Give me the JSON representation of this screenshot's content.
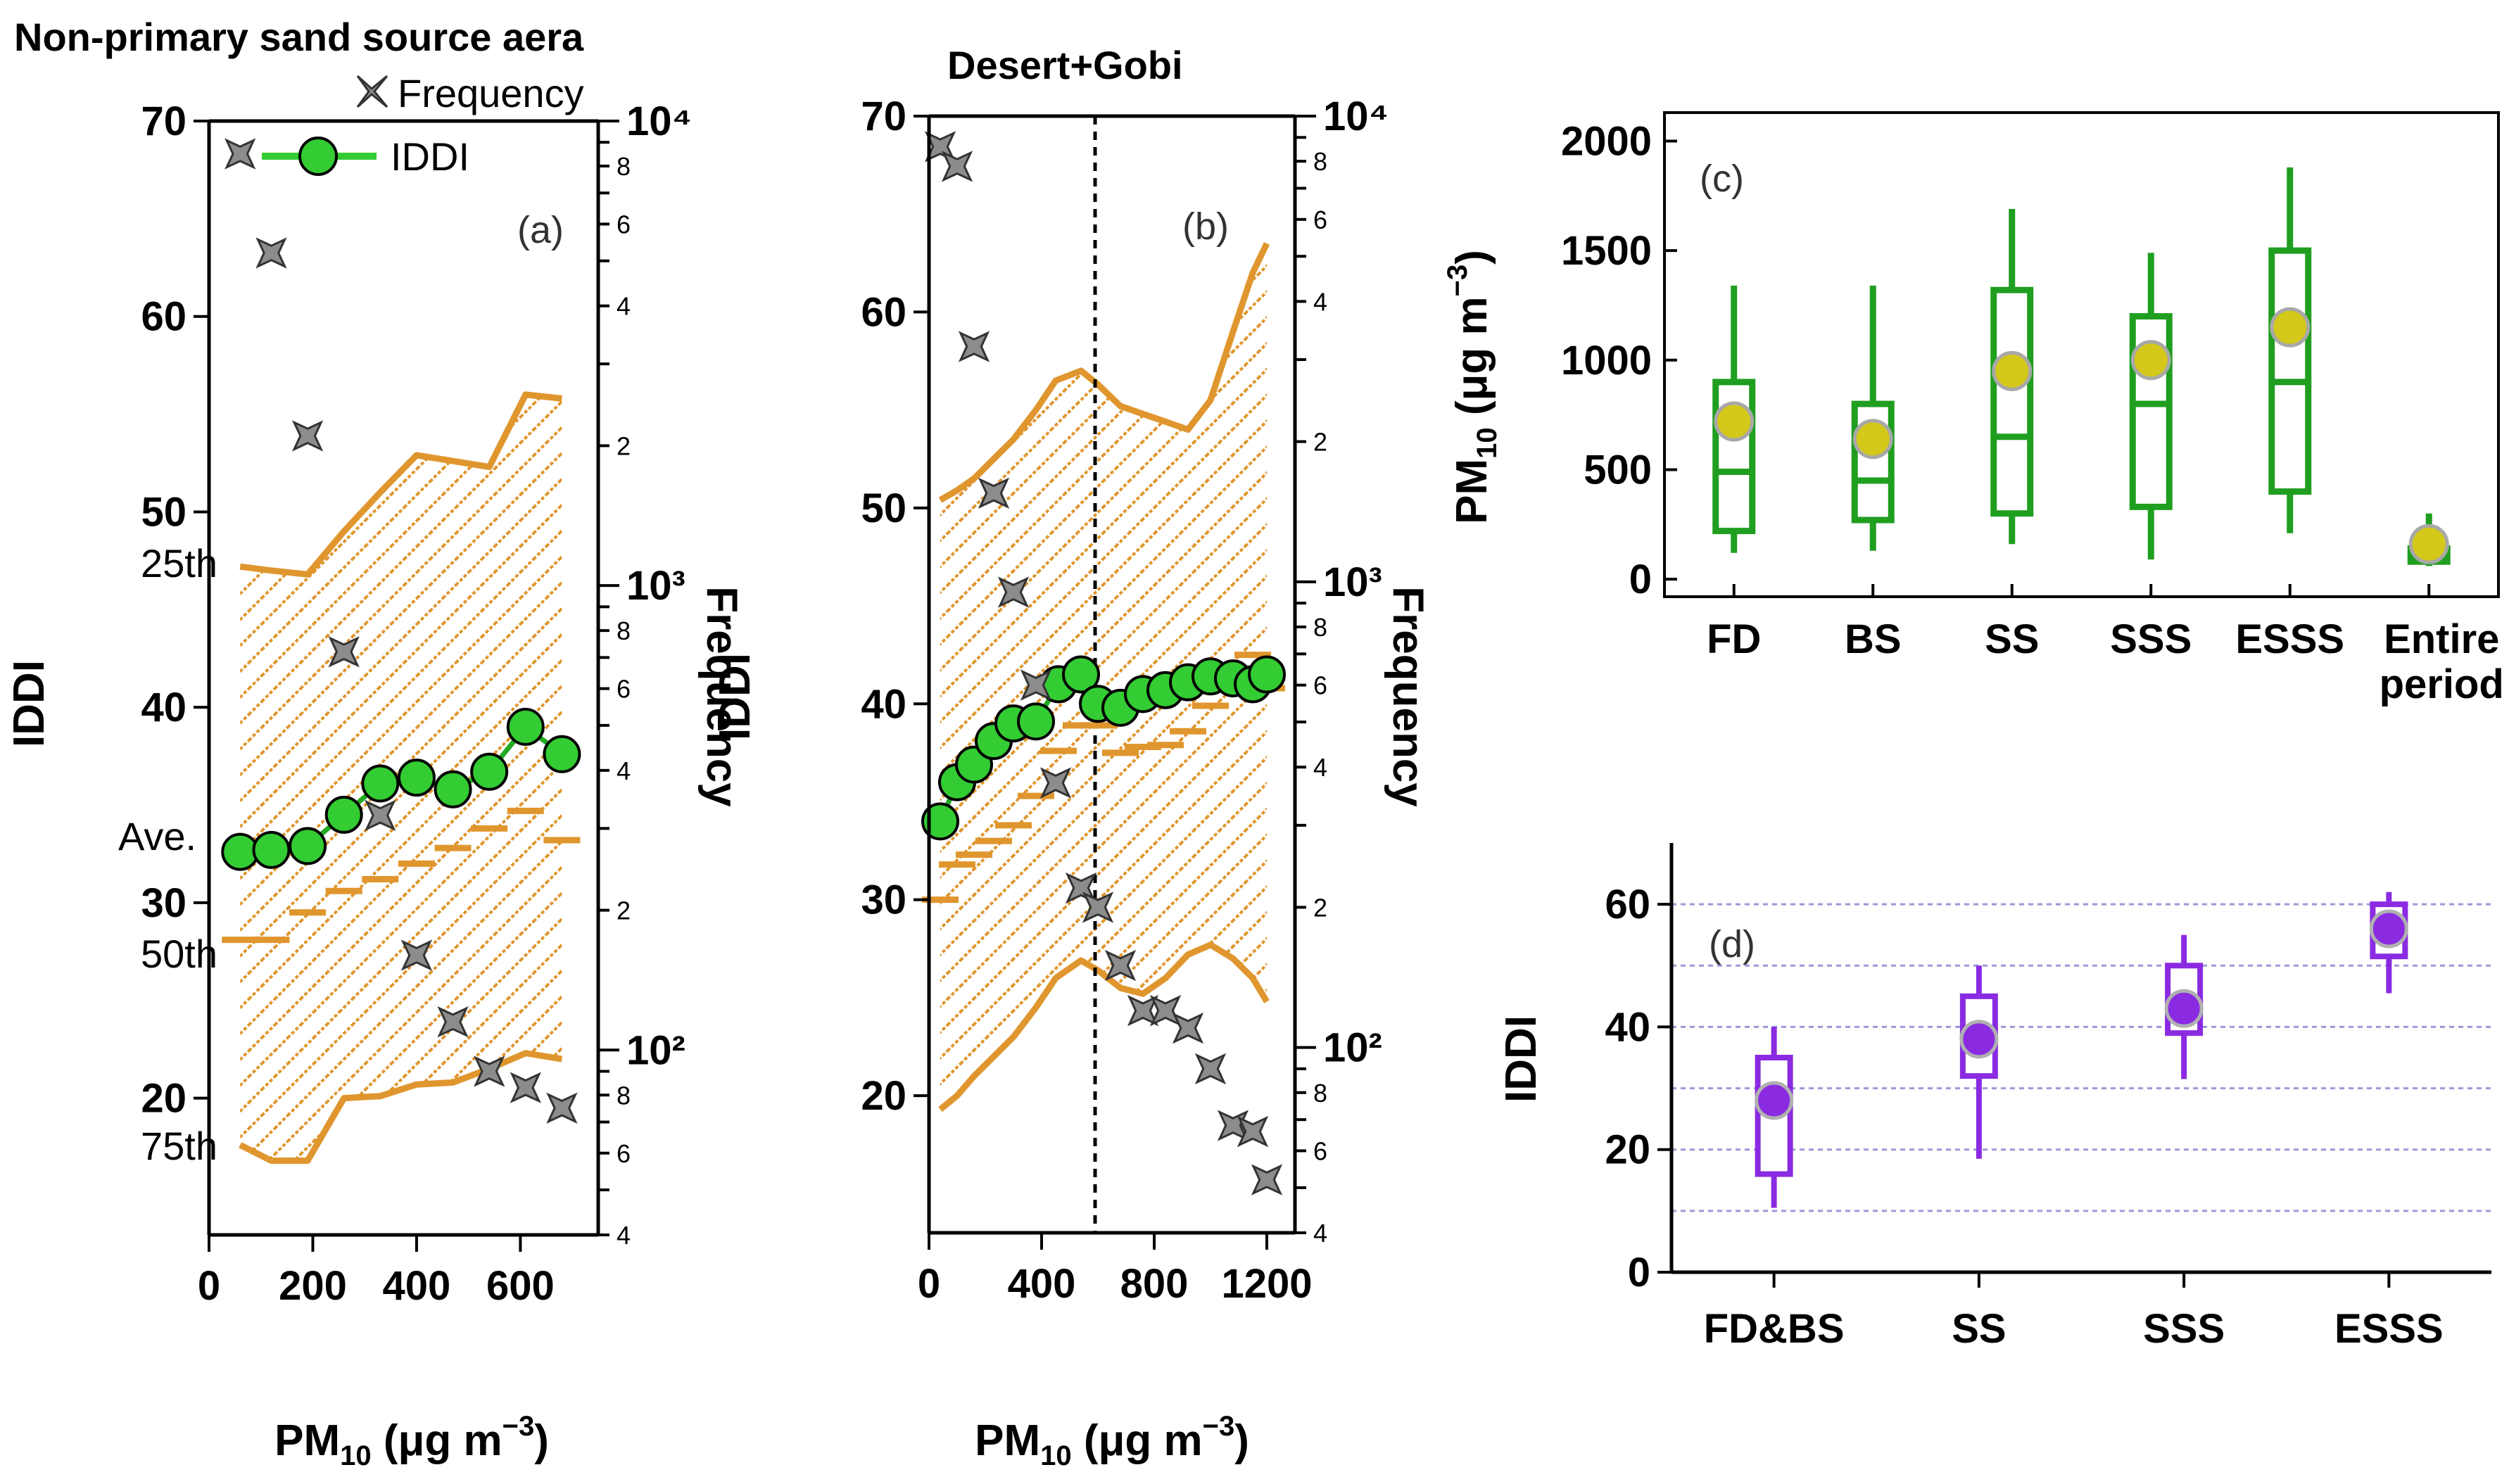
{
  "colors": {
    "orange": "#e0962e",
    "green_marker": "#33cc33",
    "green_line": "#22aa22",
    "gray_marker": "#8c8c8c",
    "box_green": "#1f9e1f",
    "yellow_marker": "#d4c81a",
    "purple": "#8a2be2",
    "grid_purple": "#9a9ad8"
  },
  "chart_data": [
    {
      "id": "a",
      "type": "line",
      "title": "Non-primary sand source aera",
      "panel_label": "(a)",
      "xlabel": "PM10 (μg m−3)",
      "ylabel": "IDDI",
      "y2label": "Frequency",
      "xlim": [
        0,
        750
      ],
      "ylim": [
        13,
        70
      ],
      "y2lim_log": [
        40,
        10000
      ],
      "x_ticks": [
        0,
        200,
        400,
        600
      ],
      "x_tick_labels": [
        "0",
        "200",
        "400",
        "600"
      ],
      "y_ticks": [
        20,
        30,
        40,
        50,
        60,
        70
      ],
      "y_tick_labels": [
        "20",
        "30",
        "40",
        "50",
        "60",
        "70"
      ],
      "y2_major": [
        100,
        1000,
        10000
      ],
      "y2_major_labels": [
        "10²",
        "10³",
        "10⁴"
      ],
      "y2_minor_labels": [
        "4",
        "6",
        "8",
        "2",
        "4",
        "6",
        "8",
        "2",
        "4",
        "6",
        "8"
      ],
      "legend": [
        "Frequency",
        "IDDI"
      ],
      "annotations": [
        "25th",
        "Ave.",
        "50th",
        "75th"
      ],
      "percentile_25": {
        "x": [
          60,
          120,
          190,
          260,
          330,
          400,
          470,
          540,
          610,
          680
        ],
        "y": [
          47.2,
          47,
          46.8,
          49,
          51,
          52.9,
          52.6,
          52.3,
          56,
          55.8
        ]
      },
      "percentile_75": {
        "x": [
          60,
          120,
          190,
          260,
          330,
          400,
          470,
          540,
          610,
          680
        ],
        "y": [
          17.6,
          16.8,
          16.8,
          20,
          20.1,
          20.7,
          20.8,
          21.5,
          22.3,
          22
        ]
      },
      "median": {
        "x": [
          60,
          120,
          190,
          260,
          330,
          400,
          470,
          540,
          610,
          680
        ],
        "y": [
          28.1,
          28.1,
          29.5,
          30.6,
          31.2,
          32,
          32.8,
          33.8,
          34.7,
          33.2
        ]
      },
      "iddi": {
        "x": [
          60,
          120,
          190,
          260,
          330,
          400,
          470,
          540,
          610,
          680
        ],
        "y": [
          32.6,
          32.7,
          32.9,
          34.5,
          36.1,
          36.4,
          35.8,
          36.7,
          39.0,
          37.6
        ]
      },
      "frequency": {
        "x": [
          60,
          120,
          190,
          260,
          330,
          400,
          470,
          540,
          610,
          680
        ],
        "y": [
          8500,
          5200,
          2100,
          720,
          320,
          160,
          115,
          90,
          83,
          75
        ]
      }
    },
    {
      "id": "b",
      "type": "line",
      "title": "Desert+Gobi",
      "panel_label": "(b)",
      "xlabel": "PM10 (μg m−3)",
      "ylabel": "IDDI",
      "y2label": "Frequency",
      "xlim": [
        0,
        1300
      ],
      "ylim": [
        13,
        70
      ],
      "y2lim_log": [
        40,
        10000
      ],
      "x_ticks": [
        0,
        400,
        800,
        1200
      ],
      "x_tick_labels": [
        "0",
        "400",
        "800",
        "1200"
      ],
      "y_ticks": [
        20,
        30,
        40,
        50,
        60,
        70
      ],
      "y_tick_labels": [
        "20",
        "30",
        "40",
        "50",
        "60",
        "70"
      ],
      "y2_major": [
        100,
        1000,
        10000
      ],
      "y2_major_labels": [
        "10²",
        "10³",
        "10⁴"
      ],
      "y2_minor_labels": [
        "4",
        "6",
        "8",
        "2",
        "4",
        "6",
        "8",
        "2",
        "4",
        "6",
        "8"
      ],
      "vline_x": 590,
      "percentile_25": {
        "x": [
          40,
          100,
          160,
          230,
          300,
          380,
          450,
          540,
          600,
          680,
          760,
          840,
          920,
          1000,
          1080,
          1150,
          1200
        ],
        "y": [
          50.4,
          50.9,
          51.5,
          52.5,
          53.5,
          55,
          56.5,
          57,
          56.3,
          55.2,
          54.8,
          54.4,
          54,
          55.5,
          59,
          62,
          63.5
        ]
      },
      "percentile_75": {
        "x": [
          40,
          100,
          160,
          230,
          300,
          380,
          450,
          540,
          600,
          680,
          760,
          840,
          920,
          1000,
          1080,
          1150,
          1200
        ],
        "y": [
          19.3,
          20,
          21,
          22,
          23,
          24.5,
          26,
          26.9,
          26.4,
          25.5,
          25.2,
          26,
          27.2,
          27.7,
          27,
          26,
          24.8
        ]
      },
      "median": {
        "x": [
          40,
          100,
          160,
          230,
          300,
          380,
          460,
          540,
          600,
          680,
          760,
          840,
          920,
          1000,
          1080,
          1150,
          1200
        ],
        "y": [
          30,
          31.8,
          32.3,
          33,
          33.8,
          35.3,
          37.6,
          38.9,
          38.9,
          37.5,
          37.8,
          37.9,
          38.6,
          39.9,
          41.7,
          42.5,
          40.8
        ]
      },
      "iddi": {
        "x": [
          40,
          100,
          160,
          230,
          300,
          380,
          460,
          540,
          600,
          680,
          760,
          840,
          920,
          1000,
          1080,
          1150,
          1200
        ],
        "y": [
          34,
          36,
          36.9,
          38.1,
          39,
          39.1,
          41,
          41.5,
          40,
          39.8,
          40.5,
          40.7,
          41.1,
          41.4,
          41.3,
          41,
          41.5
        ]
      },
      "frequency": {
        "x": [
          40,
          100,
          160,
          230,
          300,
          380,
          450,
          540,
          600,
          680,
          760,
          840,
          920,
          1000,
          1080,
          1150,
          1200
        ],
        "y": [
          8600,
          7800,
          3200,
          1550,
          950,
          600,
          370,
          220,
          200,
          150,
          120,
          120,
          110,
          90,
          68,
          66,
          52
        ]
      }
    },
    {
      "id": "c",
      "type": "box",
      "panel_label": "(c)",
      "ylabel": "PM10 (μg m−3)",
      "ylim": [
        -80,
        2130
      ],
      "y_ticks": [
        0,
        500,
        1000,
        1500,
        2000
      ],
      "y_tick_labels": [
        "0",
        "500",
        "1000",
        "1500",
        "2000"
      ],
      "categories": [
        "FD",
        "BS",
        "SS",
        "SSS",
        "ESSS",
        "Entire period"
      ],
      "whisker_low": [
        120,
        130,
        160,
        90,
        210,
        60
      ],
      "q1": [
        220,
        270,
        300,
        330,
        400,
        80
      ],
      "median": [
        490,
        450,
        650,
        800,
        900,
        100
      ],
      "q3": [
        900,
        800,
        1320,
        1200,
        1500,
        140
      ],
      "whisker_high": [
        1340,
        1340,
        1690,
        1490,
        1880,
        300
      ],
      "mean": [
        720,
        640,
        950,
        1000,
        1150,
        160
      ]
    },
    {
      "id": "d",
      "type": "box",
      "panel_label": "(d)",
      "ylabel": "IDDI",
      "ylim": [
        0,
        70
      ],
      "y_ticks": [
        0,
        20,
        40,
        60
      ],
      "y_tick_labels": [
        "0",
        "20",
        "40",
        "60"
      ],
      "grid_lines": [
        10,
        20,
        30,
        40,
        50,
        60
      ],
      "categories": [
        "FD&BS",
        "SS",
        "SSS",
        "ESSS"
      ],
      "whisker_low": [
        10.5,
        18.5,
        31.5,
        45.5
      ],
      "q1": [
        16,
        32,
        39,
        51.5
      ],
      "median": [
        28,
        38,
        42,
        57
      ],
      "q3": [
        35,
        45,
        50,
        60
      ],
      "whisker_high": [
        40,
        50,
        55,
        62
      ],
      "mean": [
        28,
        38,
        43,
        56
      ]
    }
  ]
}
